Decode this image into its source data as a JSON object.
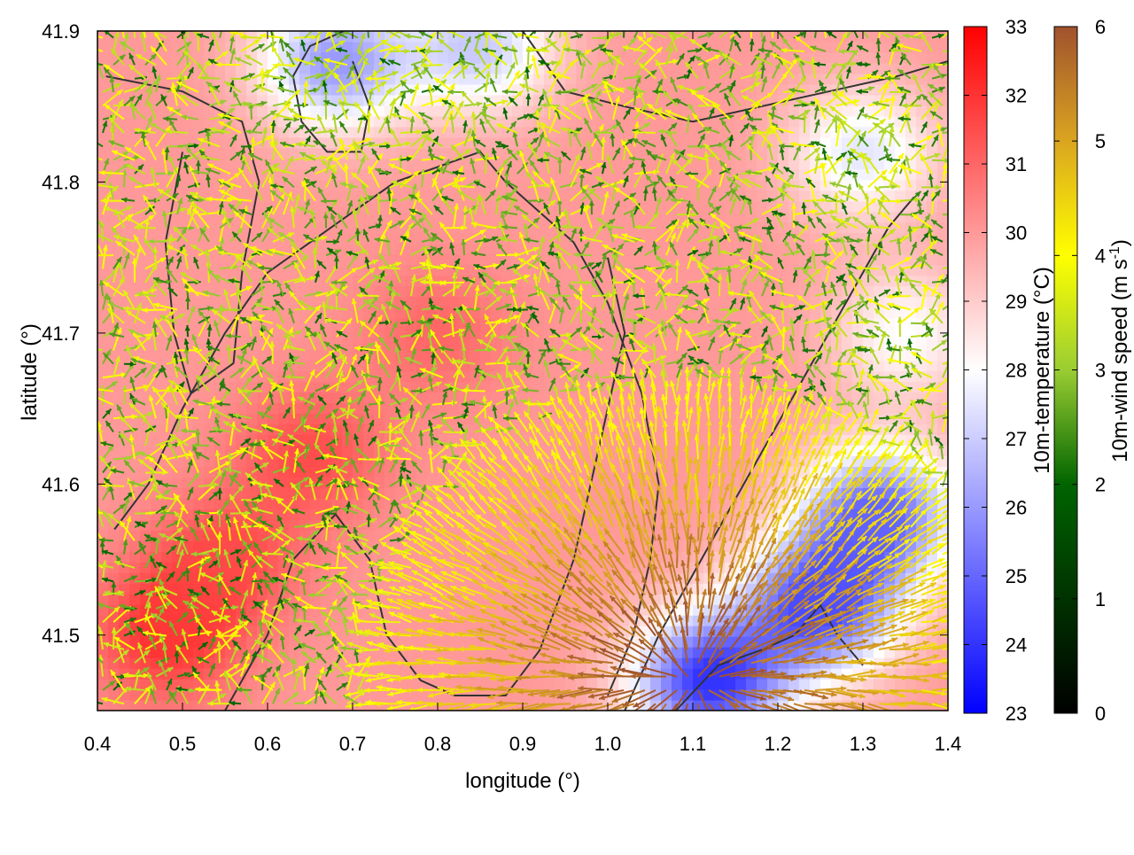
{
  "chart_data": {
    "type": "heatmap",
    "overlay": "wind vector field with contour lines",
    "xlabel": "longitude (°)",
    "ylabel": "latitude (°)",
    "xlim": [
      0.4,
      1.4
    ],
    "ylim": [
      41.45,
      41.9
    ],
    "x_ticks": [
      "0.4",
      "0.5",
      "0.6",
      "0.7",
      "0.8",
      "0.9",
      "1.0",
      "1.1",
      "1.2",
      "1.3",
      "1.4"
    ],
    "y_ticks": [
      "41.5",
      "41.6",
      "41.7",
      "41.8",
      "41.9"
    ],
    "grid": false,
    "temperature_colorbar": {
      "label": "10m-temperature (°C)",
      "range": [
        23,
        33
      ],
      "ticks": [
        "23",
        "24",
        "25",
        "26",
        "27",
        "28",
        "29",
        "30",
        "31",
        "32",
        "33"
      ],
      "colors": [
        "#0000ff",
        "#ffffff",
        "#ff0000"
      ]
    },
    "wind_colorbar": {
      "label": "10m-wind speed (m s-1)",
      "label_main": "10m-wind speed (m s",
      "label_sup": "-1",
      "label_end": ")",
      "range": [
        0,
        6
      ],
      "ticks": [
        "0",
        "1",
        "2",
        "3",
        "4",
        "5",
        "6"
      ],
      "colors": [
        "#000000",
        "#006400",
        "#9acd32",
        "#ffff00",
        "#daa520",
        "#a0522d"
      ]
    },
    "temperature_field": {
      "description_of_regions": "mostly 30-31 °C over land (west/center), cooler 23-27 °C in north-center and south-east",
      "cool_regions": [
        {
          "lon": 0.68,
          "lat": 41.88,
          "value": 26
        },
        {
          "lon": 0.85,
          "lat": 41.89,
          "value": 27
        },
        {
          "lon": 1.3,
          "lat": 41.82,
          "value": 27.5
        },
        {
          "lon": 1.35,
          "lat": 41.7,
          "value": 28
        },
        {
          "lon": 1.25,
          "lat": 41.52,
          "value": 24.5
        },
        {
          "lon": 1.12,
          "lat": 41.47,
          "value": 24
        },
        {
          "lon": 1.32,
          "lat": 41.58,
          "value": 25
        }
      ],
      "warm_regions": [
        {
          "lon": 0.55,
          "lat": 41.55,
          "value": 31.5
        },
        {
          "lon": 0.8,
          "lat": 41.7,
          "value": 31
        },
        {
          "lon": 0.65,
          "lat": 41.62,
          "value": 31.5
        },
        {
          "lon": 0.48,
          "lat": 41.5,
          "value": 32
        }
      ],
      "background_value": 30
    },
    "wind_field": {
      "typical_speed_land": 2.5,
      "strong_region": {
        "lon": 1.1,
        "lat": 41.47,
        "speed": 5.5
      },
      "flow_pattern": "outflow / divergent winds radiating from south-east (near lon 1.1, lat 41.45)"
    },
    "contours": [
      [
        [
          0.41,
          41.87
        ],
        [
          0.5,
          41.86
        ],
        [
          0.57,
          41.84
        ],
        [
          0.59,
          41.8
        ],
        [
          0.57,
          41.74
        ],
        [
          0.56,
          41.68
        ],
        [
          0.51,
          41.66
        ],
        [
          0.49,
          41.7
        ],
        [
          0.48,
          41.76
        ],
        [
          0.5,
          41.82
        ]
      ],
      [
        [
          0.42,
          41.57
        ],
        [
          0.46,
          41.6
        ],
        [
          0.5,
          41.65
        ],
        [
          0.55,
          41.7
        ],
        [
          0.6,
          41.74
        ],
        [
          0.65,
          41.76
        ],
        [
          0.7,
          41.78
        ],
        [
          0.75,
          41.8
        ],
        [
          0.8,
          41.81
        ],
        [
          0.85,
          41.82
        ],
        [
          0.88,
          41.8
        ],
        [
          0.92,
          41.78
        ],
        [
          0.96,
          41.76
        ],
        [
          1.0,
          41.72
        ],
        [
          1.04,
          41.66
        ],
        [
          1.06,
          41.6
        ],
        [
          1.05,
          41.55
        ],
        [
          1.03,
          41.5
        ],
        [
          1.0,
          41.46
        ]
      ],
      [
        [
          0.55,
          41.45
        ],
        [
          0.6,
          41.5
        ],
        [
          0.63,
          41.55
        ],
        [
          0.68,
          41.58
        ],
        [
          0.72,
          41.55
        ],
        [
          0.74,
          41.5
        ],
        [
          0.78,
          41.47
        ],
        [
          0.82,
          41.46
        ],
        [
          0.88,
          41.46
        ],
        [
          0.92,
          41.49
        ],
        [
          0.96,
          41.55
        ],
        [
          0.98,
          41.6
        ],
        [
          1.0,
          41.65
        ],
        [
          1.02,
          41.7
        ],
        [
          1.0,
          41.75
        ]
      ],
      [
        [
          1.02,
          41.45
        ],
        [
          1.06,
          41.5
        ],
        [
          1.1,
          41.54
        ],
        [
          1.14,
          41.58
        ],
        [
          1.18,
          41.62
        ],
        [
          1.22,
          41.66
        ],
        [
          1.26,
          41.7
        ],
        [
          1.3,
          41.74
        ],
        [
          1.33,
          41.77
        ],
        [
          1.36,
          41.79
        ]
      ],
      [
        [
          1.08,
          41.45
        ],
        [
          1.13,
          41.48
        ],
        [
          1.18,
          41.49
        ],
        [
          1.22,
          41.5
        ],
        [
          1.25,
          41.52
        ],
        [
          1.27,
          41.5
        ],
        [
          1.3,
          41.48
        ]
      ],
      [
        [
          0.7,
          41.88
        ],
        [
          0.72,
          41.85
        ],
        [
          0.71,
          41.82
        ],
        [
          0.67,
          41.82
        ],
        [
          0.64,
          41.84
        ],
        [
          0.63,
          41.87
        ],
        [
          0.65,
          41.89
        ],
        [
          0.69,
          41.9
        ]
      ],
      [
        [
          0.9,
          41.9
        ],
        [
          0.95,
          41.86
        ],
        [
          1.02,
          41.85
        ],
        [
          1.1,
          41.84
        ],
        [
          1.18,
          41.85
        ],
        [
          1.26,
          41.86
        ],
        [
          1.34,
          41.87
        ],
        [
          1.4,
          41.88
        ]
      ]
    ]
  }
}
